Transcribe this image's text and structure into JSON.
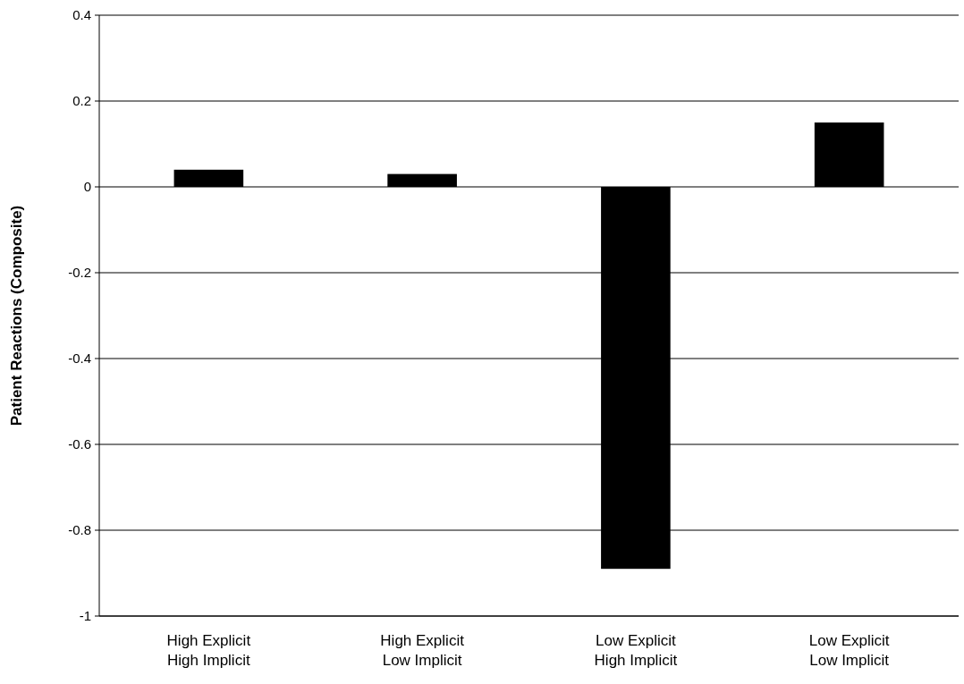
{
  "chart_data": {
    "type": "bar",
    "ylabel": "Patient Reactions (Composite)",
    "categories": [
      "High Explicit\nHigh Implicit",
      "High Explicit\nLow Implicit",
      "Low Explicit\nHigh Implicit",
      "Low Explicit\nLow Implicit"
    ],
    "values": [
      0.04,
      0.03,
      -0.89,
      0.15
    ],
    "color": "#000000",
    "ylim": [
      -1,
      0.4
    ],
    "yticks": [
      -1,
      -0.8,
      -0.6,
      -0.4,
      -0.2,
      0,
      0.2,
      0.4
    ],
    "grid": "y"
  }
}
